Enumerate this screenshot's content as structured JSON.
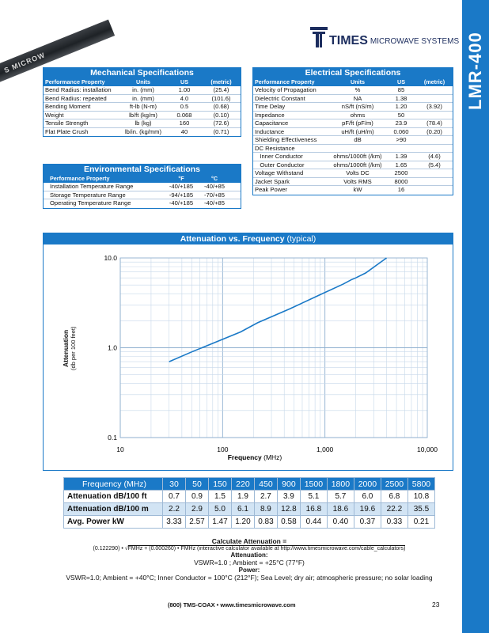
{
  "sidebar_title": "LMR-400",
  "cable_print": "S MICROW",
  "logo": {
    "brand": "TIMES",
    "sub": "MICROWAVE SYSTEMS"
  },
  "mechanical": {
    "title": "Mechanical Specifications",
    "headers": [
      "Performance Property",
      "Units",
      "US",
      "(metric)"
    ],
    "rows": [
      [
        "Bend Radius: installation",
        "in. (mm)",
        "1.00",
        "(25.4)"
      ],
      [
        "Bend Radius: repeated",
        "in. (mm)",
        "4.0",
        "(101.6)"
      ],
      [
        "Bending Moment",
        "ft-lb (N-m)",
        "0.5",
        "(0.68)"
      ],
      [
        "Weight",
        "lb/ft (kg/m)",
        "0.068",
        "(0.10)"
      ],
      [
        "Tensile Strength",
        "lb (kg)",
        "160",
        "(72.6)"
      ],
      [
        "Flat Plate Crush",
        "lb/in. (kg/mm)",
        "40",
        "(0.71)"
      ]
    ]
  },
  "environmental": {
    "title": "Environmental Specifications",
    "headers": [
      "Performance Property",
      "°F",
      "°C"
    ],
    "rows": [
      [
        "Installation Temperature Range",
        "-40/+185",
        "-40/+85"
      ],
      [
        "Storage Temperature Range",
        "-94/+185",
        "-70/+85"
      ],
      [
        "Operating Temperature Range",
        "-40/+185",
        "-40/+85"
      ]
    ]
  },
  "electrical": {
    "title": "Electrical Specifications",
    "headers": [
      "Performance Property",
      "Units",
      "US",
      "(metric)"
    ],
    "rows": [
      [
        "Velocity of Propagation",
        "%",
        "85",
        ""
      ],
      [
        "Dielectric Constant",
        "NA",
        "1.38",
        ""
      ],
      [
        "Time Delay",
        "nS/ft (nS/m)",
        "1.20",
        "(3.92)"
      ],
      [
        "Impedance",
        "ohms",
        "50",
        ""
      ],
      [
        "Capacitance",
        "pF/ft (pF/m)",
        "23.9",
        "(78.4)"
      ],
      [
        "Inductance",
        "uH/ft (uH/m)",
        "0.060",
        "(0.20)"
      ],
      [
        "Shielding Effectiveness",
        "dB",
        ">90",
        ""
      ],
      [
        "DC Resistance",
        "",
        "",
        ""
      ],
      [
        "   Inner Conductor",
        "ohms/1000ft (/km)",
        "1.39",
        "(4.6)"
      ],
      [
        "   Outer Conductor",
        "ohms/1000ft (/km)",
        "1.65",
        "(5.4)"
      ],
      [
        "Voltage Withstand",
        "Volts DC",
        "2500",
        ""
      ],
      [
        "Jacket Spark",
        "Volts RMS",
        "8000",
        ""
      ],
      [
        "Peak Power",
        "kW",
        "16",
        ""
      ]
    ]
  },
  "chart_data": {
    "type": "line",
    "title": "Attenuation vs. Frequency",
    "title_suffix": "(typical)",
    "xlabel": "Frequency",
    "xlabel_unit": "(MHz)",
    "ylabel": "Attenuation",
    "ylabel_unit": "(db per 100 feet)",
    "xscale": "log",
    "yscale": "log",
    "xlim": [
      10,
      10000
    ],
    "ylim": [
      0.1,
      10
    ],
    "x_ticks": [
      "10",
      "100",
      "1,000",
      "10,000"
    ],
    "y_ticks": [
      "10.0",
      "1.0",
      "0.1"
    ],
    "grid": true,
    "x": [
      30,
      50,
      150,
      220,
      450,
      900,
      1500,
      1800,
      2000,
      2500,
      4000
    ],
    "y": [
      0.7,
      0.9,
      1.5,
      1.9,
      2.7,
      3.9,
      5.1,
      5.7,
      6.0,
      6.8,
      10.0
    ]
  },
  "atten_table": {
    "freq_label": "Frequency (MHz)",
    "freqs": [
      "30",
      "50",
      "150",
      "220",
      "450",
      "900",
      "1500",
      "1800",
      "2000",
      "2500",
      "5800"
    ],
    "rows": [
      {
        "label": "Attenuation dB/100 ft",
        "values": [
          "0.7",
          "0.9",
          "1.5",
          "1.9",
          "2.7",
          "3.9",
          "5.1",
          "5.7",
          "6.0",
          "6.8",
          "10.8"
        ]
      },
      {
        "label": "Attenuation dB/100 m",
        "values": [
          "2.2",
          "2.9",
          "5.0",
          "6.1",
          "8.9",
          "12.8",
          "16.8",
          "18.6",
          "19.6",
          "22.2",
          "35.5"
        ]
      },
      {
        "label": "Avg. Power kW",
        "values": [
          "3.33",
          "2.57",
          "1.47",
          "1.20",
          "0.83",
          "0.58",
          "0.44",
          "0.40",
          "0.37",
          "0.33",
          "0.21"
        ]
      }
    ]
  },
  "calc": {
    "heading": "Calculate Attenuation =",
    "formula_a": "(0.122290) •",
    "formula_b": "FMHz  +  (0.000260) • FMHz (interactive calculator available at http://www.timesmicrowave.com/cable_calculators)",
    "atten_heading": "Attenuation:",
    "atten_text": "VSWR=1.0 ; Ambient = +25°C (77°F)",
    "power_heading": "Power:",
    "power_text": "VSWR=1.0; Ambient = +40°C; Inner Conductor = 100°C (212°F); Sea Level; dry air; atmospheric pressure; no solar loading"
  },
  "footer": {
    "contact": "(800) TMS-COAX  •  www.timesmicrowave.com",
    "page": "23"
  },
  "colors": {
    "accent": "#1a79c7",
    "row_alt": "#d2e4f4",
    "logo": "#1c2d5e"
  }
}
